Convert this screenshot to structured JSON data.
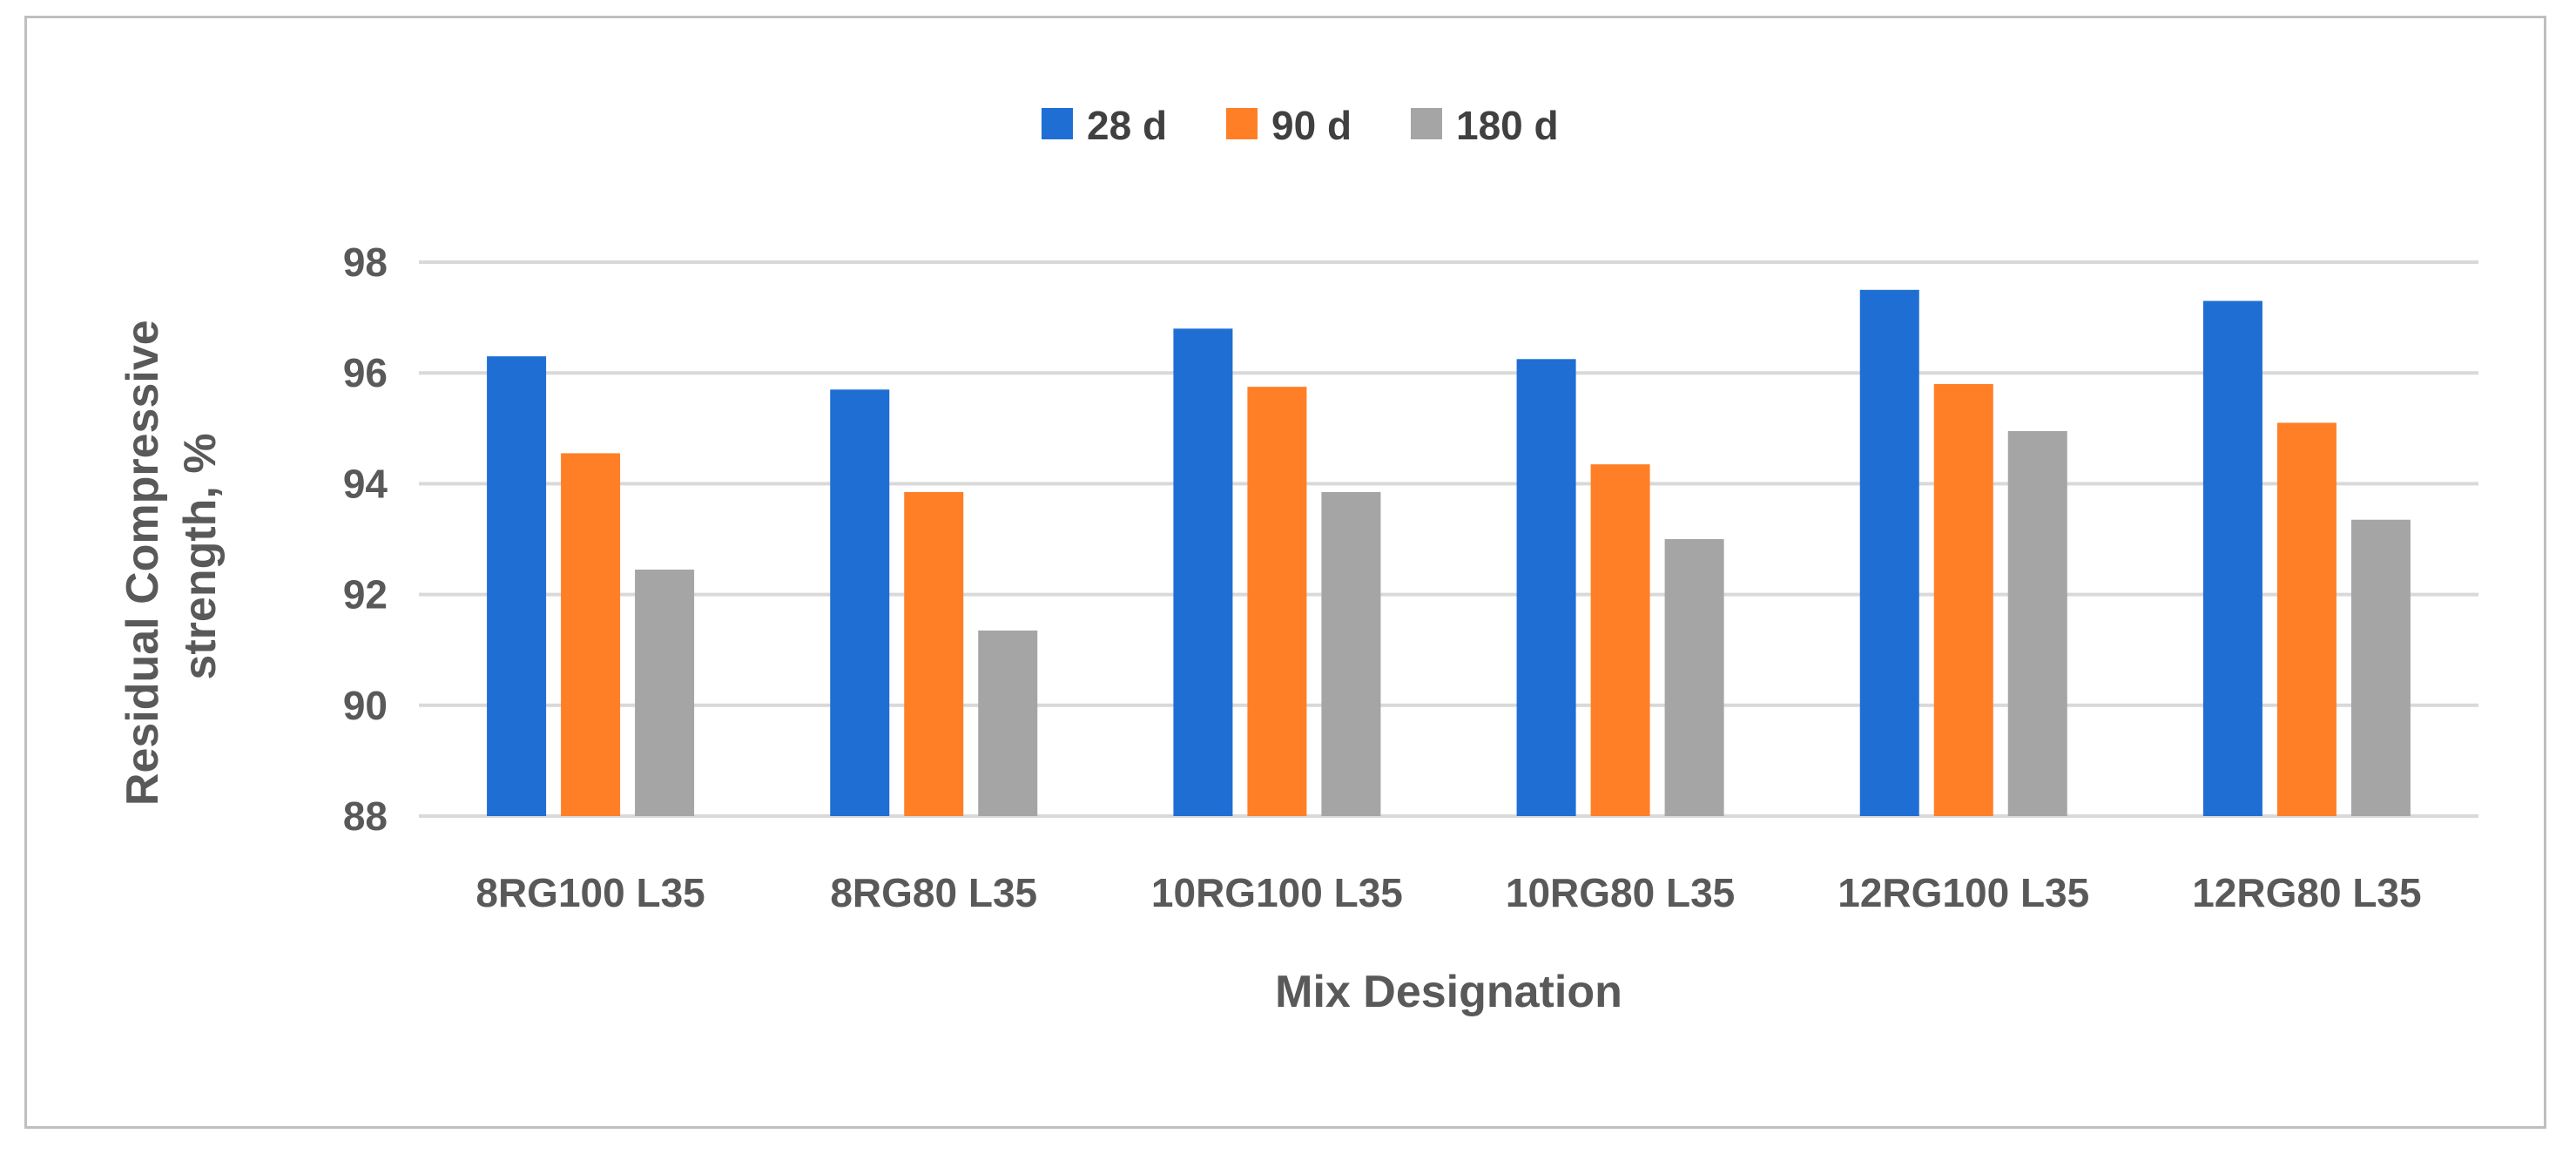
{
  "chart_data": {
    "type": "bar",
    "title": "",
    "xlabel": "Mix Designation",
    "ylabel_lines": [
      "Residual Compressive",
      "strength, %"
    ],
    "categories": [
      "8RG100 L35",
      "8RG80 L35",
      "10RG100 L35",
      "10RG80 L35",
      "12RG100 L35",
      "12RG80 L35"
    ],
    "series": [
      {
        "name": "28 d",
        "color": "#1f6ed4",
        "values": [
          96.3,
          95.7,
          96.8,
          96.25,
          97.5,
          97.3
        ]
      },
      {
        "name": "90 d",
        "color": "#ff7f27",
        "values": [
          94.55,
          93.85,
          95.75,
          94.35,
          95.8,
          95.1
        ]
      },
      {
        "name": "180 d",
        "color": "#a5a5a5",
        "values": [
          92.45,
          91.35,
          93.85,
          93.0,
          94.95,
          93.35
        ]
      }
    ],
    "ylim": [
      88,
      98
    ],
    "yticks": [
      88,
      90,
      92,
      94,
      96,
      98
    ],
    "grid": true,
    "legend_position": "top-center"
  }
}
